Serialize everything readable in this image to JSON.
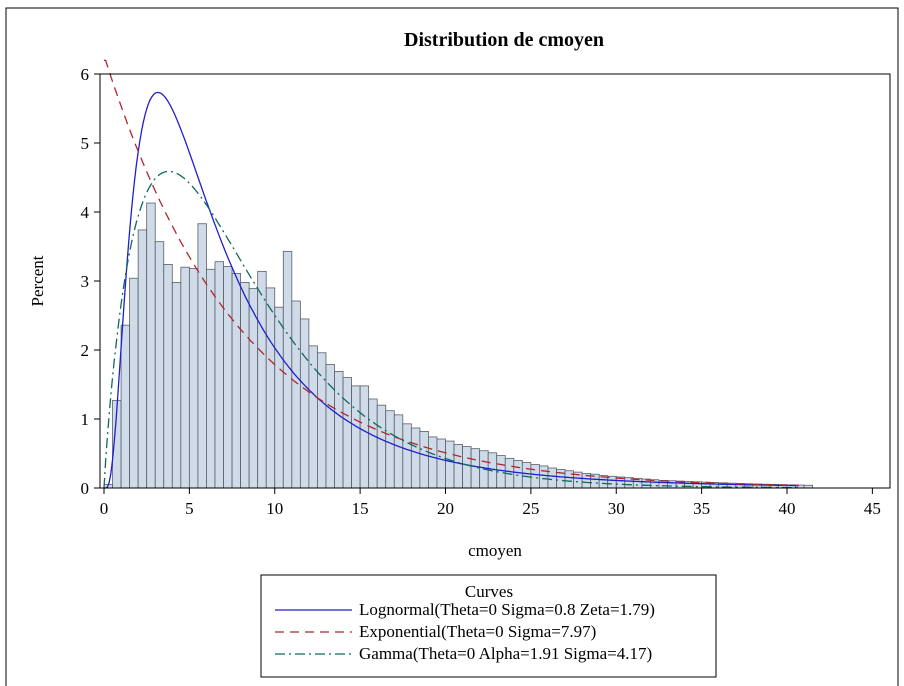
{
  "chart_data": {
    "type": "histogram",
    "title": "Distribution de cmoyen",
    "xlabel": "cmoyen",
    "ylabel": "Percent",
    "xlim": [
      0,
      45
    ],
    "ylim": [
      0,
      6
    ],
    "xticks": [
      "0",
      "5",
      "10",
      "15",
      "20",
      "25",
      "30",
      "35",
      "40",
      "45"
    ],
    "yticks": [
      "0",
      "1",
      "2",
      "3",
      "4",
      "5",
      "6"
    ],
    "bin_width": 0.5,
    "bin_start": 0,
    "histogram": {
      "values": [
        0.05,
        1.27,
        2.36,
        3.04,
        3.74,
        4.13,
        3.57,
        3.24,
        2.98,
        3.2,
        3.18,
        3.83,
        3.17,
        3.28,
        3.21,
        3.11,
        2.98,
        2.89,
        3.14,
        2.9,
        2.62,
        3.43,
        2.71,
        2.45,
        2.06,
        1.96,
        1.79,
        1.69,
        1.6,
        1.48,
        1.48,
        1.29,
        1.2,
        1.12,
        1.06,
        0.93,
        0.87,
        0.82,
        0.74,
        0.71,
        0.68,
        0.63,
        0.6,
        0.57,
        0.54,
        0.51,
        0.47,
        0.43,
        0.4,
        0.37,
        0.34,
        0.32,
        0.29,
        0.27,
        0.25,
        0.23,
        0.21,
        0.2,
        0.18,
        0.17,
        0.16,
        0.15,
        0.14,
        0.13,
        0.12,
        0.11,
        0.105,
        0.1,
        0.095,
        0.09,
        0.085,
        0.08,
        0.075,
        0.07,
        0.066,
        0.062,
        0.058,
        0.055,
        0.052,
        0.049,
        0.046,
        0.043,
        0.04
      ]
    },
    "fill_color": "#cfdbe8",
    "curves": [
      {
        "name": "Lognormal(Theta=0 Sigma=0.8 Zeta=1.79)",
        "dist": "lognormal",
        "theta": 0,
        "sigma": 0.8,
        "zeta": 1.79,
        "color": "#1f1fd0",
        "dash": ""
      },
      {
        "name": "Exponential(Theta=0 Sigma=7.97)",
        "dist": "exponential",
        "theta": 0,
        "sigma": 7.97,
        "color": "#b0262d",
        "dash": "9,6"
      },
      {
        "name": "Gamma(Theta=0 Alpha=1.91 Sigma=4.17)",
        "dist": "gamma",
        "theta": 0,
        "alpha": 1.91,
        "sigma": 4.17,
        "color": "#0e6b5a",
        "dash": "10,4,2,4"
      }
    ],
    "legend": {
      "title": "Curves",
      "position": "bottom"
    }
  }
}
